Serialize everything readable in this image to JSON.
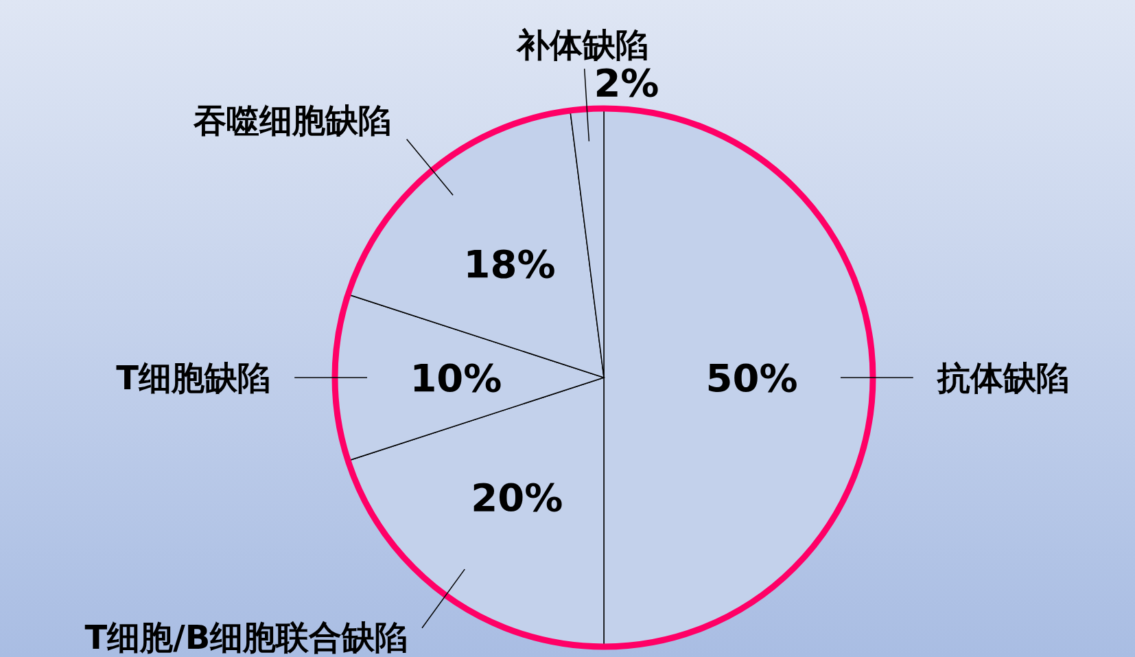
{
  "chart_data": {
    "type": "pie",
    "categories": [
      "抗体缺陷",
      "T细胞/B细胞联合缺陷",
      "T细胞缺陷",
      "吞噬细胞缺陷",
      "补体缺陷"
    ],
    "values": [
      50,
      20,
      10,
      18,
      2
    ],
    "colors": [
      "#c3d1eb",
      "#c3d1eb",
      "#c3d1eb",
      "#c3d1eb",
      "#c3d1eb"
    ],
    "value_labels": [
      "50%",
      "20%",
      "10%",
      "18%",
      "2%"
    ]
  }
}
